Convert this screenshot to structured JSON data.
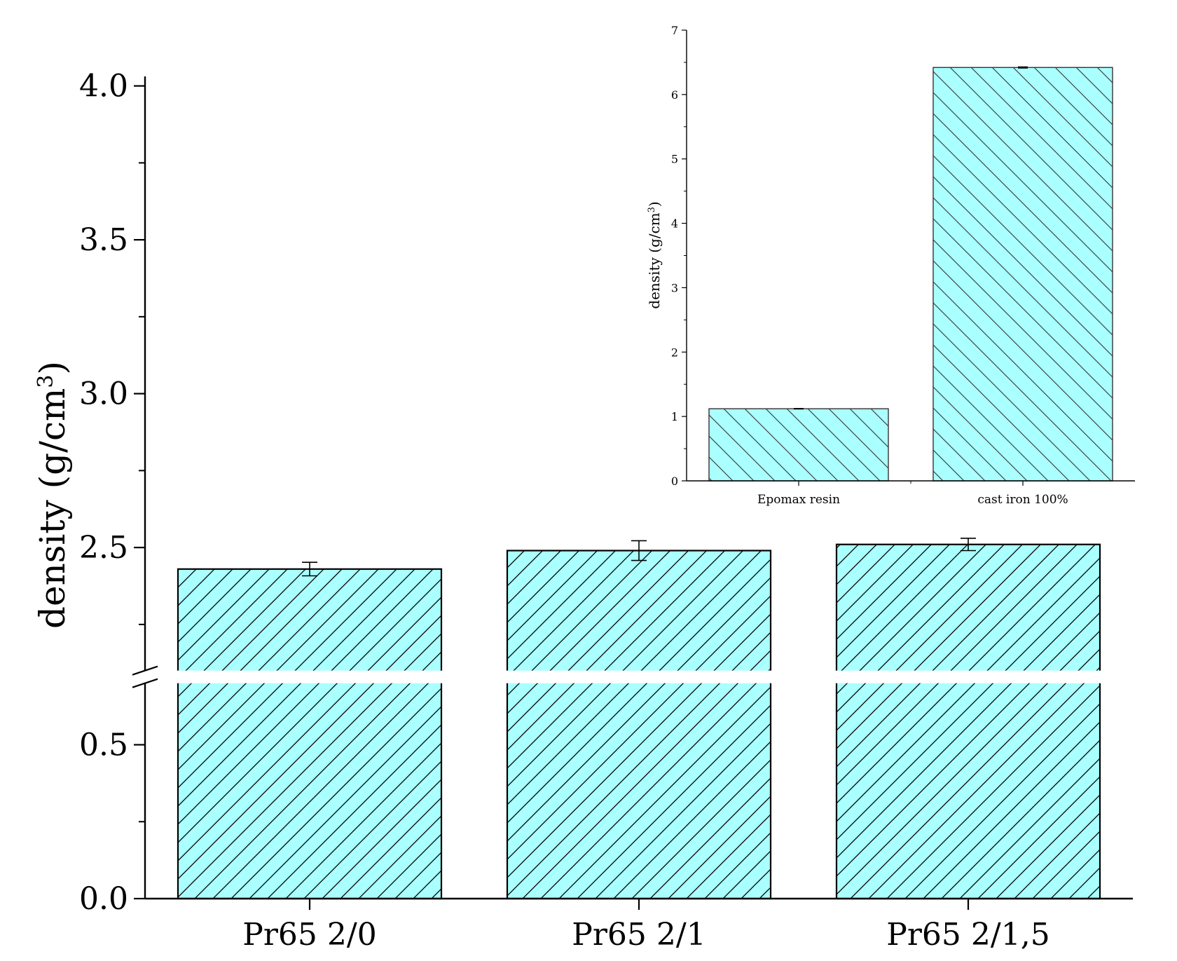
{
  "chart_data": [
    {
      "type": "bar",
      "role": "main",
      "categories": [
        "Pr65 2/0",
        "Pr65 2/1",
        "Pr65 2/1,5"
      ],
      "values": [
        2.43,
        2.49,
        2.51
      ],
      "errors": [
        0.022,
        0.032,
        0.02
      ],
      "xlabel": "",
      "ylabel": "density (g/cm",
      "ylabel_superscript": "3",
      "ylabel_close": ")",
      "ylim": [
        0,
        4.0
      ],
      "axis_break": {
        "from": 0.7,
        "to": 2.1
      },
      "yticks_lower": [
        "0.0",
        "0.5"
      ],
      "yticks_upper": [
        "2.5",
        "3.0",
        "3.5",
        "4.0"
      ],
      "bar_fill": "#aaffff",
      "hatch": "forward-diagonal",
      "grid": false,
      "legend": "none"
    },
    {
      "type": "bar",
      "role": "inset",
      "categories": [
        "Epomax resin",
        "cast iron 100%"
      ],
      "values": [
        1.12,
        6.42
      ],
      "errors": [
        0.005,
        0.01
      ],
      "xlabel": "",
      "ylabel": "density (g/cm",
      "ylabel_superscript": "3",
      "ylabel_close": ")",
      "ylim": [
        0,
        7
      ],
      "yticks": [
        "0",
        "1",
        "2",
        "3",
        "4",
        "5",
        "6",
        "7"
      ],
      "bar_fill": "#aaffff",
      "hatch": "back-diagonal",
      "grid": false,
      "legend": "none"
    }
  ]
}
